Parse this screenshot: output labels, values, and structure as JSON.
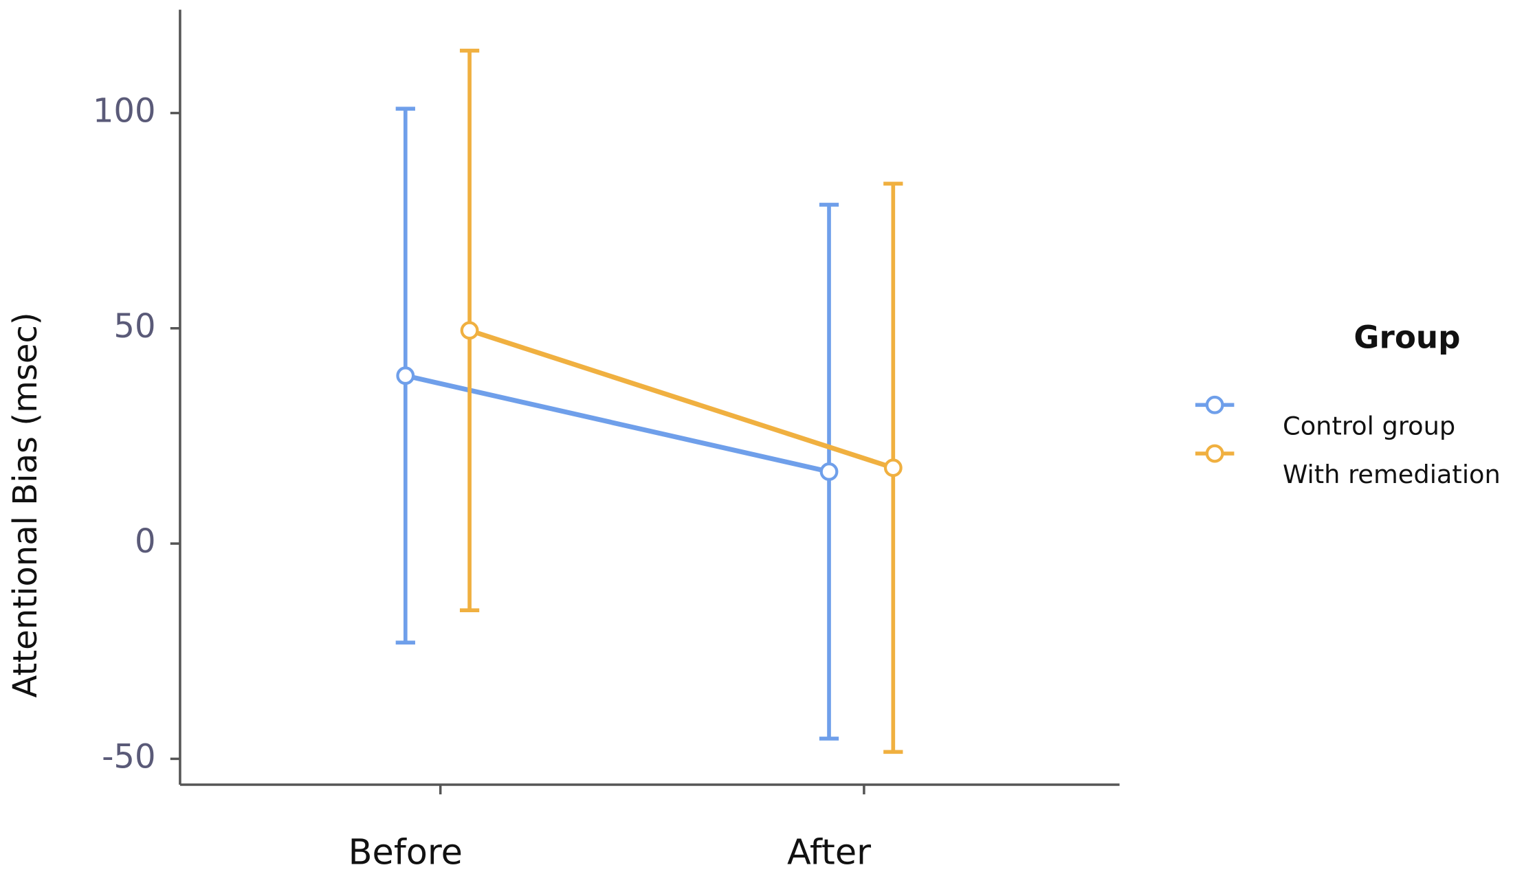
{
  "chart_data": {
    "type": "line",
    "y_label": "Attentional Bias (msec)",
    "categories": [
      "Before",
      "After"
    ],
    "series": [
      {
        "name": "Control group",
        "color": "#6f9fea",
        "values": [
          39,
          16.7
        ],
        "error": [
          62,
          62
        ]
      },
      {
        "name": "With remediation",
        "color": "#f0b040",
        "values": [
          49.5,
          17.6
        ],
        "error": [
          65,
          66
        ]
      }
    ],
    "ylim": [
      -56,
      124
    ],
    "yticks": [
      -50,
      0,
      50,
      100
    ],
    "legend_title": "Group",
    "legend_position": "right"
  }
}
